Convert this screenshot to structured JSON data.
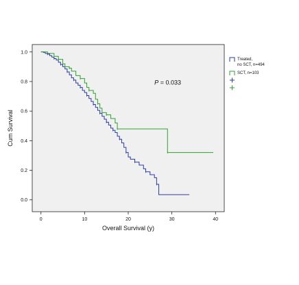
{
  "chart_data": {
    "type": "line",
    "subtype": "kaplan-meier-step",
    "xlabel": "Overall Survival (y)",
    "ylabel": "Cum Survival",
    "xlim": [
      -2,
      42
    ],
    "ylim": [
      -0.08,
      1.05
    ],
    "xticks": [
      0,
      10,
      20,
      30,
      40
    ],
    "yticks": [
      0.0,
      0.2,
      0.4,
      0.6,
      0.8,
      1.0
    ],
    "ytick_labels": [
      "0.0",
      "0.2",
      "0.4",
      "0.6",
      "0.8",
      "1.0"
    ],
    "grid": false,
    "plot_background": "#f0f0f0",
    "legend_position": "right",
    "annotation": {
      "text_prefix": "P",
      "text": " = 0.033",
      "x": 26,
      "y": 0.78
    },
    "series": [
      {
        "name": "Treated, no SCT, n=494",
        "color": "#2b3aa8",
        "points": [
          [
            0,
            1.0
          ],
          [
            0.6,
            0.996
          ],
          [
            1.0,
            0.99
          ],
          [
            1.5,
            0.985
          ],
          [
            2.0,
            0.975
          ],
          [
            2.5,
            0.965
          ],
          [
            3.0,
            0.955
          ],
          [
            3.5,
            0.945
          ],
          [
            4.0,
            0.93
          ],
          [
            4.5,
            0.915
          ],
          [
            5.0,
            0.9
          ],
          [
            5.5,
            0.885
          ],
          [
            6.0,
            0.865
          ],
          [
            6.5,
            0.845
          ],
          [
            7.0,
            0.825
          ],
          [
            7.5,
            0.81
          ],
          [
            8.0,
            0.79
          ],
          [
            8.5,
            0.775
          ],
          [
            9.0,
            0.76
          ],
          [
            9.5,
            0.74
          ],
          [
            10.0,
            0.725
          ],
          [
            10.5,
            0.705
          ],
          [
            11.0,
            0.685
          ],
          [
            11.5,
            0.665
          ],
          [
            12.0,
            0.645
          ],
          [
            12.5,
            0.625
          ],
          [
            13.0,
            0.605
          ],
          [
            13.5,
            0.585
          ],
          [
            14.0,
            0.565
          ],
          [
            14.5,
            0.545
          ],
          [
            15.0,
            0.525
          ],
          [
            15.5,
            0.505
          ],
          [
            16.0,
            0.485
          ],
          [
            16.5,
            0.47
          ],
          [
            17.0,
            0.455
          ],
          [
            17.5,
            0.43
          ],
          [
            18.0,
            0.41
          ],
          [
            18.5,
            0.385
          ],
          [
            19.0,
            0.355
          ],
          [
            19.5,
            0.32
          ],
          [
            20.0,
            0.29
          ],
          [
            20.5,
            0.275
          ],
          [
            21.5,
            0.255
          ],
          [
            22.5,
            0.235
          ],
          [
            23.5,
            0.21
          ],
          [
            24.0,
            0.19
          ],
          [
            25.0,
            0.17
          ],
          [
            26.0,
            0.15
          ],
          [
            26.5,
            0.105
          ],
          [
            27.0,
            0.035
          ],
          [
            34.0,
            0.035
          ]
        ]
      },
      {
        "name": "SCT, n=103",
        "color": "#2ea02e",
        "points": [
          [
            0,
            1.0
          ],
          [
            1.5,
            0.99
          ],
          [
            3.0,
            0.97
          ],
          [
            4.0,
            0.95
          ],
          [
            5.0,
            0.92
          ],
          [
            5.5,
            0.9
          ],
          [
            6.5,
            0.89
          ],
          [
            7.0,
            0.87
          ],
          [
            8.0,
            0.84
          ],
          [
            9.0,
            0.82
          ],
          [
            10.0,
            0.79
          ],
          [
            10.5,
            0.76
          ],
          [
            11.0,
            0.74
          ],
          [
            12.0,
            0.72
          ],
          [
            12.5,
            0.68
          ],
          [
            13.0,
            0.65
          ],
          [
            13.5,
            0.62
          ],
          [
            14.0,
            0.59
          ],
          [
            15.0,
            0.575
          ],
          [
            16.0,
            0.55
          ],
          [
            17.0,
            0.52
          ],
          [
            17.5,
            0.48
          ],
          [
            23.0,
            0.48
          ],
          [
            29.0,
            0.48
          ],
          [
            29.0,
            0.32
          ],
          [
            39.5,
            0.32
          ]
        ]
      }
    ],
    "censored_markers": [
      {
        "series": 0,
        "symbol": "+",
        "color": "#2b3aa8"
      },
      {
        "series": 1,
        "symbol": "+",
        "color": "#2ea02e"
      }
    ]
  }
}
